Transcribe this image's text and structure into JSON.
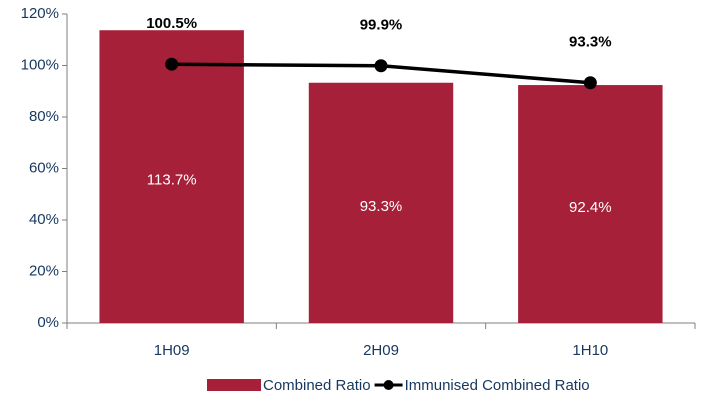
{
  "chart_data": {
    "type": "bar",
    "categories": [
      "1H09",
      "2H09",
      "1H10"
    ],
    "series": [
      {
        "name": "Combined Ratio",
        "type": "bar",
        "color": "#a52038",
        "values": [
          113.7,
          93.3,
          92.4
        ],
        "value_labels": [
          "113.7%",
          "93.3%",
          "92.4%"
        ]
      },
      {
        "name": "Immunised Combined Ratio",
        "type": "line",
        "color": "#000000",
        "values": [
          100.5,
          99.9,
          93.3
        ],
        "value_labels": [
          "100.5%",
          "99.9%",
          "93.3%"
        ]
      }
    ],
    "ylim": [
      0,
      120
    ],
    "yticks": [
      {
        "value": 0,
        "label": "0%"
      },
      {
        "value": 20,
        "label": "20%"
      },
      {
        "value": 40,
        "label": "40%"
      },
      {
        "value": 60,
        "label": "60%"
      },
      {
        "value": 80,
        "label": "80%"
      },
      {
        "value": 100,
        "label": "100%"
      },
      {
        "value": 120,
        "label": "120%"
      }
    ],
    "legend": "bottom"
  }
}
